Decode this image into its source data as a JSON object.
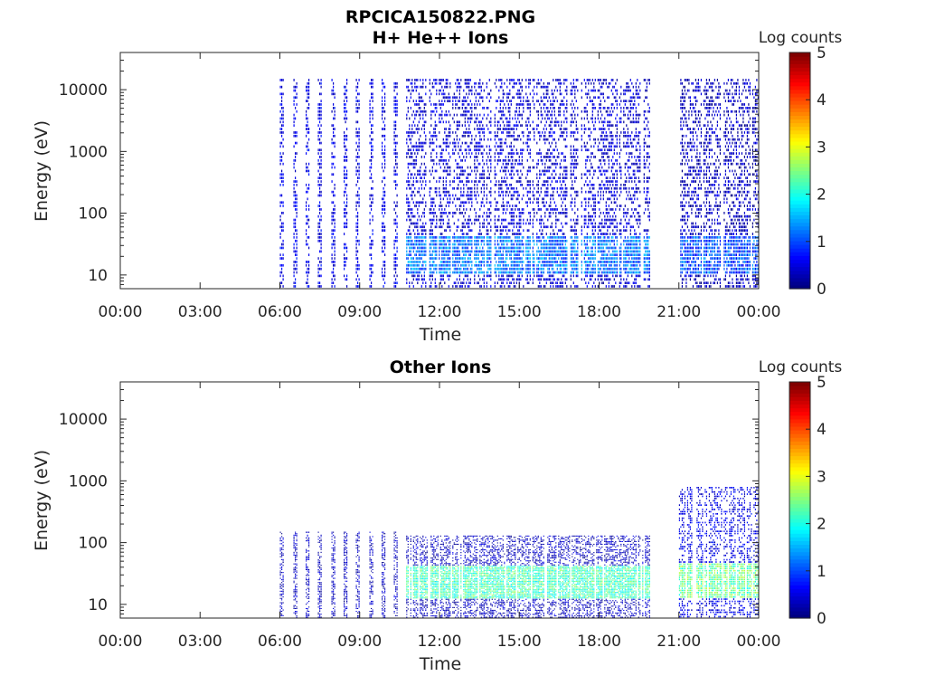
{
  "figure": {
    "title_line1": "RPCICA150822.PNG"
  },
  "colors": {
    "axis": "#262626",
    "background": "#ffffff",
    "colormap": "jet"
  },
  "chart_data": [
    {
      "type": "heatmap",
      "title": "H+ He++ Ions",
      "xlabel": "Time",
      "ylabel": "Energy (eV)",
      "yscale": "log",
      "xlim": [
        "00:00",
        "24:00"
      ],
      "ylim": [
        6,
        40000
      ],
      "x_tick_labels": [
        "00:00",
        "03:00",
        "06:00",
        "09:00",
        "12:00",
        "15:00",
        "18:00",
        "21:00",
        "00:00"
      ],
      "y_tick_labels": [
        "10",
        "100",
        "1000",
        "10000"
      ],
      "colorbar": {
        "label": "Log counts",
        "range": [
          0,
          5
        ],
        "tick_labels": [
          "0",
          "1",
          "2",
          "3",
          "4",
          "5"
        ]
      },
      "grid": false,
      "data_intervals": [
        {
          "start": "06:00",
          "end": "10:45",
          "mode": "sparse-sweeps",
          "max_energy_eV": 15000,
          "typical_log_counts": 0.5
        },
        {
          "start": "10:45",
          "end": "19:55",
          "mode": "dense",
          "max_energy_eV": 15000,
          "low_energy_band_eV": [
            10,
            40
          ],
          "band_log_counts": 1.2,
          "typical_log_counts": 0.4
        },
        {
          "start": "21:00",
          "end": "24:00",
          "mode": "dense",
          "max_energy_eV": 15000,
          "low_energy_band_eV": [
            10,
            40
          ],
          "band_log_counts": 1.0,
          "typical_log_counts": 0.3
        }
      ]
    },
    {
      "type": "heatmap",
      "title": "Other Ions",
      "xlabel": "Time",
      "ylabel": "Energy (eV)",
      "yscale": "log",
      "xlim": [
        "00:00",
        "24:00"
      ],
      "ylim": [
        6,
        40000
      ],
      "x_tick_labels": [
        "00:00",
        "03:00",
        "06:00",
        "09:00",
        "12:00",
        "15:00",
        "18:00",
        "21:00",
        "00:00"
      ],
      "y_tick_labels": [
        "10",
        "100",
        "1000",
        "10000"
      ],
      "colorbar": {
        "label": "Log counts",
        "range": [
          0,
          5
        ],
        "tick_labels": [
          "0",
          "1",
          "2",
          "3",
          "4",
          "5"
        ]
      },
      "grid": false,
      "data_intervals": [
        {
          "start": "06:00",
          "end": "10:45",
          "mode": "sparse-sweeps",
          "max_energy_eV": 150,
          "typical_log_counts": 0.3
        },
        {
          "start": "10:45",
          "end": "19:55",
          "mode": "dense",
          "max_energy_eV": 130,
          "low_energy_band_eV": [
            12,
            40
          ],
          "band_log_counts": 2.2,
          "typical_log_counts": 0.3
        },
        {
          "start": "21:00",
          "end": "24:00",
          "mode": "dense",
          "max_energy_eV": 800,
          "low_energy_band_eV": [
            12,
            45
          ],
          "band_log_counts": 2.4,
          "typical_log_counts": 0.5
        }
      ]
    }
  ]
}
